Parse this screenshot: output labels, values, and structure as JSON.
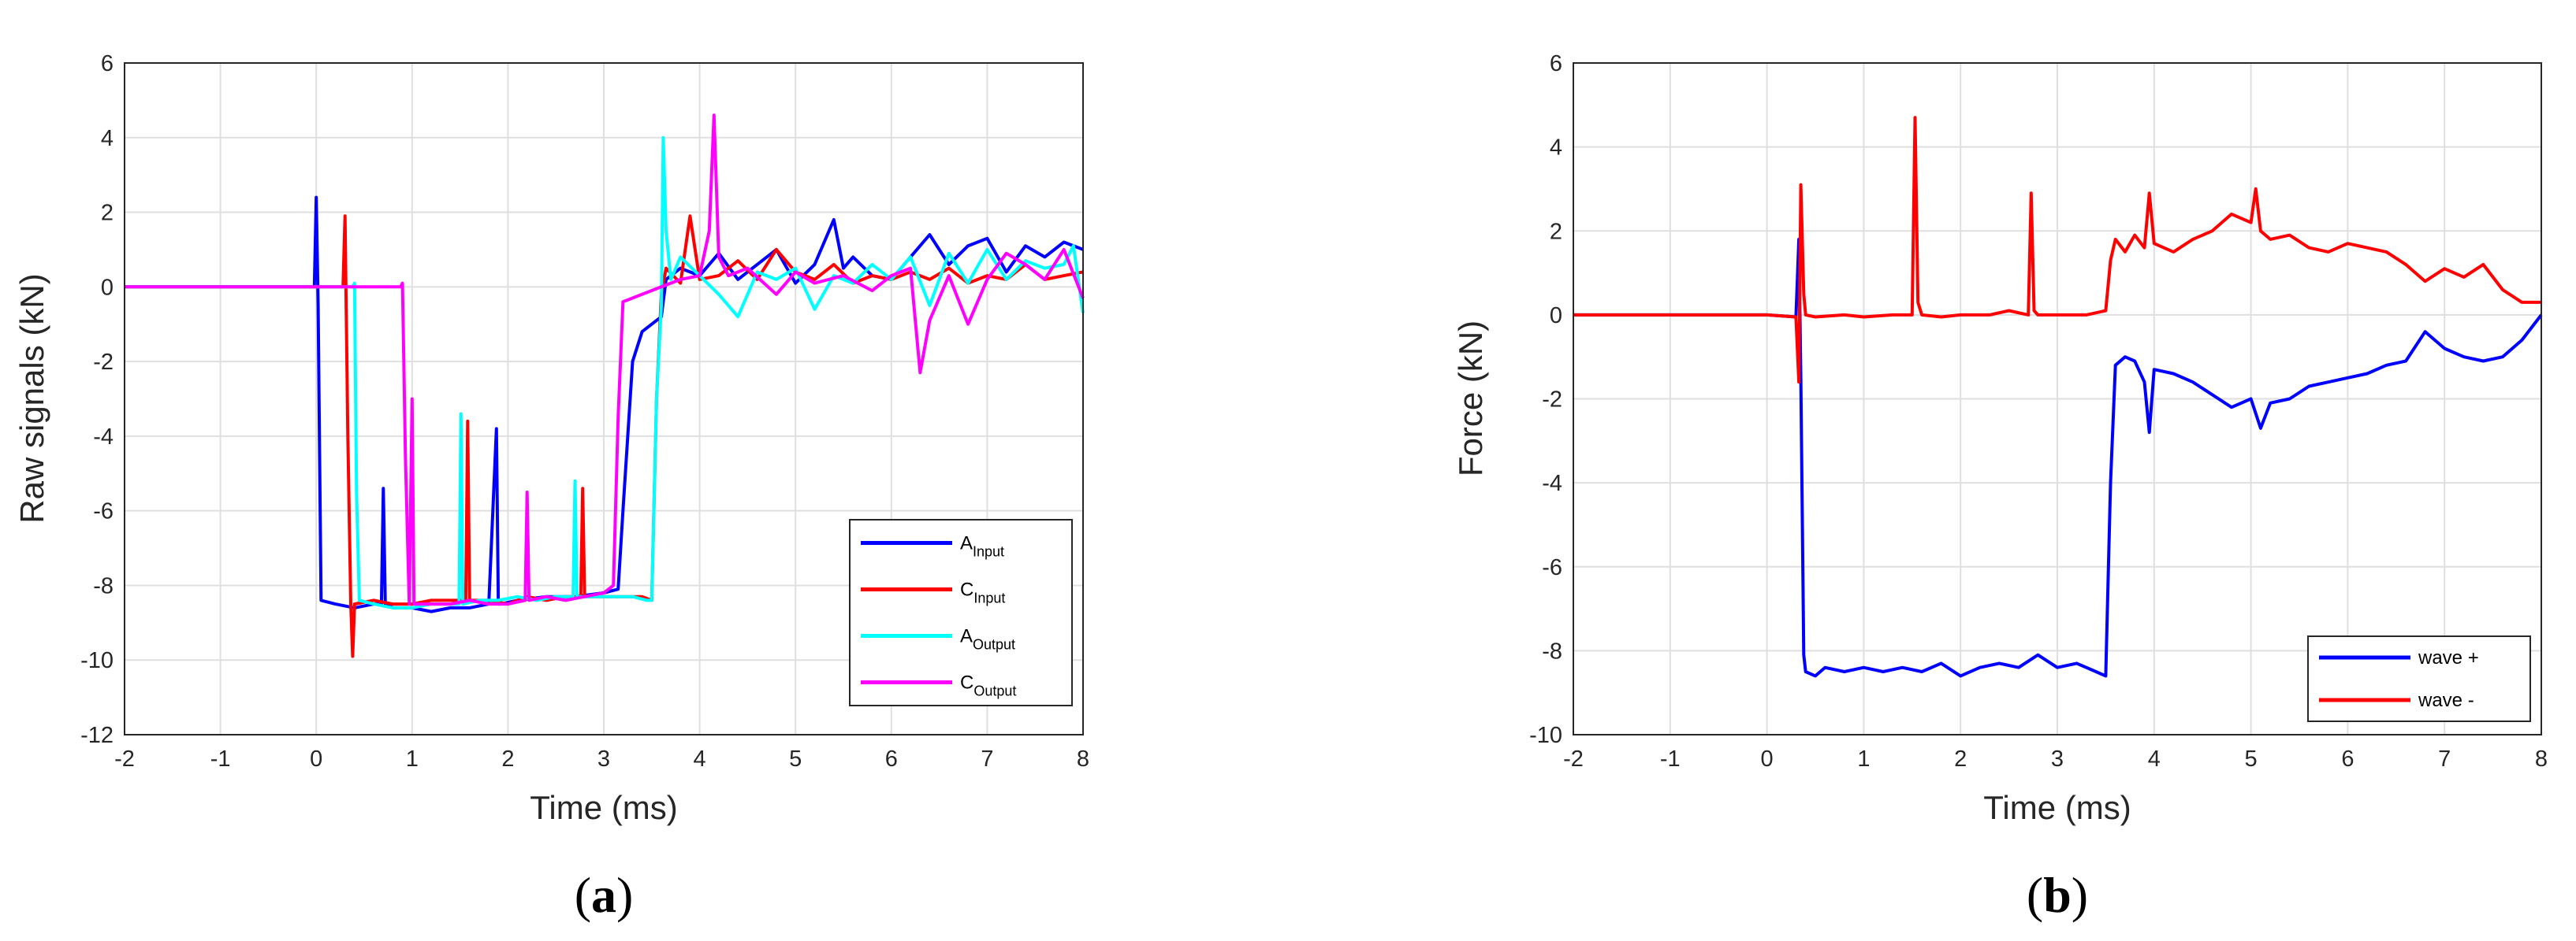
{
  "chart_data": [
    {
      "type": "line",
      "panel_label": "a",
      "xlabel": "Time (ms)",
      "ylabel": "Raw signals (kN)",
      "xlim": [
        -2,
        8
      ],
      "ylim": [
        -12,
        6
      ],
      "xticks": [
        "-2",
        "-1",
        "0",
        "1",
        "2",
        "3",
        "4",
        "5",
        "6",
        "7",
        "8"
      ],
      "yticks": [
        "-12",
        "-10",
        "-8",
        "-6",
        "-4",
        "-2",
        "0",
        "2",
        "4",
        "6"
      ],
      "grid": true,
      "legend_position": "bottom-right",
      "series": [
        {
          "name": "A",
          "name_sub": "Input",
          "color": "#0000ff",
          "x": [
            -2,
            -0.02,
            0.0,
            0.02,
            0.05,
            0.2,
            0.4,
            0.6,
            0.68,
            0.7,
            0.72,
            0.8,
            1.0,
            1.2,
            1.4,
            1.6,
            1.8,
            1.88,
            1.9,
            1.92,
            2.1,
            2.4,
            2.7,
            3.0,
            3.15,
            3.2,
            3.3,
            3.4,
            3.5,
            3.6,
            3.65,
            3.8,
            4.0,
            4.2,
            4.4,
            4.6,
            4.8,
            5.0,
            5.2,
            5.4,
            5.5,
            5.6,
            5.8,
            6.0,
            6.2,
            6.4,
            6.6,
            6.8,
            7.0,
            7.2,
            7.4,
            7.6,
            7.8,
            8.0
          ],
          "y": [
            0,
            0,
            2.4,
            -0.5,
            -8.4,
            -8.5,
            -8.6,
            -8.5,
            -8.5,
            -5.4,
            -8.5,
            -8.6,
            -8.6,
            -8.7,
            -8.6,
            -8.6,
            -8.5,
            -3.8,
            -8.5,
            -8.5,
            -8.4,
            -8.3,
            -8.3,
            -8.2,
            -8.1,
            -6.0,
            -2.0,
            -1.2,
            -1.0,
            -0.8,
            0.2,
            0.5,
            0.3,
            0.9,
            0.2,
            0.6,
            1.0,
            0.1,
            0.6,
            1.8,
            0.5,
            0.8,
            0.3,
            0.2,
            0.8,
            1.4,
            0.6,
            1.1,
            1.3,
            0.4,
            1.1,
            0.8,
            1.2,
            1.0
          ]
        },
        {
          "name": "C",
          "name_sub": "Input",
          "color": "#ff0000",
          "x": [
            -2,
            0.28,
            0.3,
            0.33,
            0.36,
            0.38,
            0.4,
            0.6,
            0.8,
            1.0,
            1.2,
            1.4,
            1.56,
            1.58,
            1.6,
            1.8,
            2.0,
            2.2,
            2.4,
            2.6,
            2.76,
            2.78,
            2.8,
            3.0,
            3.2,
            3.4,
            3.5,
            3.55,
            3.6,
            3.65,
            3.8,
            3.9,
            4.0,
            4.2,
            4.4,
            4.6,
            4.8,
            5.0,
            5.2,
            5.4,
            5.6,
            5.8,
            6.0,
            6.2,
            6.4,
            6.6,
            6.8,
            7.0,
            7.2,
            7.4,
            7.6,
            7.8,
            8.0
          ],
          "y": [
            0,
            0,
            1.9,
            -4.0,
            -8.5,
            -9.9,
            -8.5,
            -8.4,
            -8.5,
            -8.5,
            -8.4,
            -8.4,
            -8.4,
            -3.6,
            -8.4,
            -8.4,
            -8.5,
            -8.3,
            -8.4,
            -8.3,
            -8.3,
            -5.4,
            -8.3,
            -8.3,
            -8.3,
            -8.3,
            -8.4,
            -3.0,
            -0.2,
            0.5,
            0.1,
            1.9,
            0.2,
            0.3,
            0.7,
            0.2,
            1.0,
            0.4,
            0.2,
            0.6,
            0.1,
            0.3,
            0.2,
            0.4,
            0.2,
            0.5,
            0.1,
            0.3,
            0.2,
            0.6,
            0.2,
            0.3,
            0.4
          ]
        },
        {
          "name": "A",
          "name_sub": "Output",
          "color": "#00ffff",
          "x": [
            -2,
            0.38,
            0.4,
            0.42,
            0.45,
            0.6,
            0.8,
            1.0,
            1.2,
            1.4,
            1.49,
            1.51,
            1.53,
            1.7,
            1.9,
            2.1,
            2.3,
            2.5,
            2.68,
            2.7,
            2.72,
            2.9,
            3.1,
            3.3,
            3.45,
            3.5,
            3.55,
            3.6,
            3.62,
            3.65,
            3.7,
            3.8,
            4.0,
            4.2,
            4.4,
            4.6,
            4.8,
            5.0,
            5.2,
            5.4,
            5.6,
            5.8,
            6.0,
            6.2,
            6.4,
            6.6,
            6.8,
            7.0,
            7.2,
            7.4,
            7.6,
            7.8,
            7.9,
            8.0
          ],
          "y": [
            0,
            0,
            0.1,
            -5.5,
            -8.4,
            -8.5,
            -8.6,
            -8.6,
            -8.5,
            -8.5,
            -8.5,
            -3.4,
            -8.5,
            -8.4,
            -8.4,
            -8.3,
            -8.4,
            -8.3,
            -8.3,
            -5.2,
            -8.3,
            -8.3,
            -8.3,
            -8.3,
            -8.4,
            -8.4,
            -3.0,
            -0.5,
            4.0,
            1.5,
            0.2,
            0.8,
            0.3,
            -0.2,
            -0.8,
            0.4,
            0.2,
            0.5,
            -0.6,
            0.3,
            0.1,
            0.6,
            0.2,
            0.8,
            -0.5,
            0.9,
            0.1,
            1.0,
            0.2,
            0.7,
            0.5,
            0.6,
            1.1,
            -0.7
          ]
        },
        {
          "name": "C",
          "name_sub": "Output",
          "color": "#ff00ff",
          "x": [
            -2,
            0.88,
            0.9,
            0.93,
            0.97,
            1.0,
            1.02,
            1.2,
            1.4,
            1.6,
            1.8,
            2.0,
            2.18,
            2.2,
            2.22,
            2.4,
            2.6,
            2.8,
            3.0,
            3.1,
            3.15,
            3.2,
            3.4,
            3.6,
            3.8,
            4.0,
            4.1,
            4.15,
            4.2,
            4.3,
            4.5,
            4.8,
            5.0,
            5.2,
            5.5,
            5.8,
            6.0,
            6.2,
            6.3,
            6.4,
            6.6,
            6.8,
            7.0,
            7.2,
            7.4,
            7.6,
            7.8,
            8.0
          ],
          "y": [
            0,
            0,
            0.1,
            -4.5,
            -8.5,
            -3.0,
            -8.5,
            -8.5,
            -8.5,
            -8.4,
            -8.5,
            -8.5,
            -8.4,
            -5.5,
            -8.4,
            -8.3,
            -8.4,
            -8.3,
            -8.2,
            -8.0,
            -3.5,
            -0.4,
            -0.2,
            0.0,
            0.2,
            0.3,
            1.5,
            4.6,
            0.8,
            0.3,
            0.5,
            -0.2,
            0.4,
            0.1,
            0.3,
            -0.1,
            0.3,
            0.5,
            -2.3,
            -0.9,
            0.3,
            -1.0,
            0.2,
            0.9,
            0.6,
            0.2,
            1.0,
            -0.3
          ]
        }
      ]
    },
    {
      "type": "line",
      "panel_label": "b",
      "xlabel": "Time (ms)",
      "ylabel": "Force (kN)",
      "xlim": [
        -2,
        8
      ],
      "ylim": [
        -10,
        6
      ],
      "xticks": [
        "-2",
        "-1",
        "0",
        "1",
        "2",
        "3",
        "4",
        "5",
        "6",
        "7",
        "8"
      ],
      "yticks": [
        "-10",
        "-8",
        "-6",
        "-4",
        "-2",
        "0",
        "2",
        "4",
        "6"
      ],
      "grid": true,
      "legend_position": "bottom-right",
      "series": [
        {
          "name": "wave +",
          "color": "#0000ff",
          "x": [
            -2,
            0.0,
            0.3,
            0.33,
            0.35,
            0.38,
            0.4,
            0.5,
            0.6,
            0.8,
            1.0,
            1.2,
            1.4,
            1.6,
            1.8,
            2.0,
            2.2,
            2.4,
            2.6,
            2.8,
            3.0,
            3.2,
            3.4,
            3.5,
            3.55,
            3.6,
            3.7,
            3.8,
            3.9,
            3.95,
            4.0,
            4.2,
            4.4,
            4.6,
            4.8,
            5.0,
            5.1,
            5.2,
            5.4,
            5.6,
            5.8,
            6.0,
            6.2,
            6.4,
            6.6,
            6.8,
            7.0,
            7.2,
            7.4,
            7.6,
            7.8,
            8.0
          ],
          "y": [
            0,
            0,
            -0.05,
            1.8,
            -1.5,
            -8.1,
            -8.5,
            -8.6,
            -8.4,
            -8.5,
            -8.4,
            -8.5,
            -8.4,
            -8.5,
            -8.3,
            -8.6,
            -8.4,
            -8.3,
            -8.4,
            -8.1,
            -8.4,
            -8.3,
            -8.5,
            -8.6,
            -4.0,
            -1.2,
            -1.0,
            -1.1,
            -1.6,
            -2.8,
            -1.3,
            -1.4,
            -1.6,
            -1.9,
            -2.2,
            -2.0,
            -2.7,
            -2.1,
            -2.0,
            -1.7,
            -1.6,
            -1.5,
            -1.4,
            -1.2,
            -1.1,
            -0.4,
            -0.8,
            -1.0,
            -1.1,
            -1.0,
            -0.6,
            0.0
          ]
        },
        {
          "name": "wave -",
          "color": "#ff0000",
          "x": [
            -2,
            0.0,
            0.3,
            0.33,
            0.35,
            0.38,
            0.4,
            0.5,
            0.8,
            1.0,
            1.3,
            1.5,
            1.53,
            1.56,
            1.6,
            1.8,
            2.0,
            2.3,
            2.5,
            2.7,
            2.73,
            2.76,
            2.8,
            3.0,
            3.3,
            3.5,
            3.55,
            3.6,
            3.7,
            3.8,
            3.9,
            3.95,
            4.0,
            4.2,
            4.4,
            4.6,
            4.8,
            5.0,
            5.05,
            5.1,
            5.2,
            5.4,
            5.6,
            5.8,
            6.0,
            6.2,
            6.4,
            6.6,
            6.8,
            7.0,
            7.2,
            7.4,
            7.6,
            7.8,
            8.0
          ],
          "y": [
            0,
            0,
            -0.05,
            -1.6,
            3.1,
            0.5,
            0.0,
            -0.05,
            0.0,
            -0.05,
            0.0,
            0.0,
            4.7,
            0.3,
            0.0,
            -0.05,
            0.0,
            0.0,
            0.1,
            0.0,
            2.9,
            0.1,
            0.0,
            0.0,
            0.0,
            0.1,
            1.3,
            1.8,
            1.5,
            1.9,
            1.6,
            2.9,
            1.7,
            1.5,
            1.8,
            2.0,
            2.4,
            2.2,
            3.0,
            2.0,
            1.8,
            1.9,
            1.6,
            1.5,
            1.7,
            1.6,
            1.5,
            1.2,
            0.8,
            1.1,
            0.9,
            1.2,
            0.6,
            0.3,
            0.3
          ]
        }
      ]
    }
  ]
}
